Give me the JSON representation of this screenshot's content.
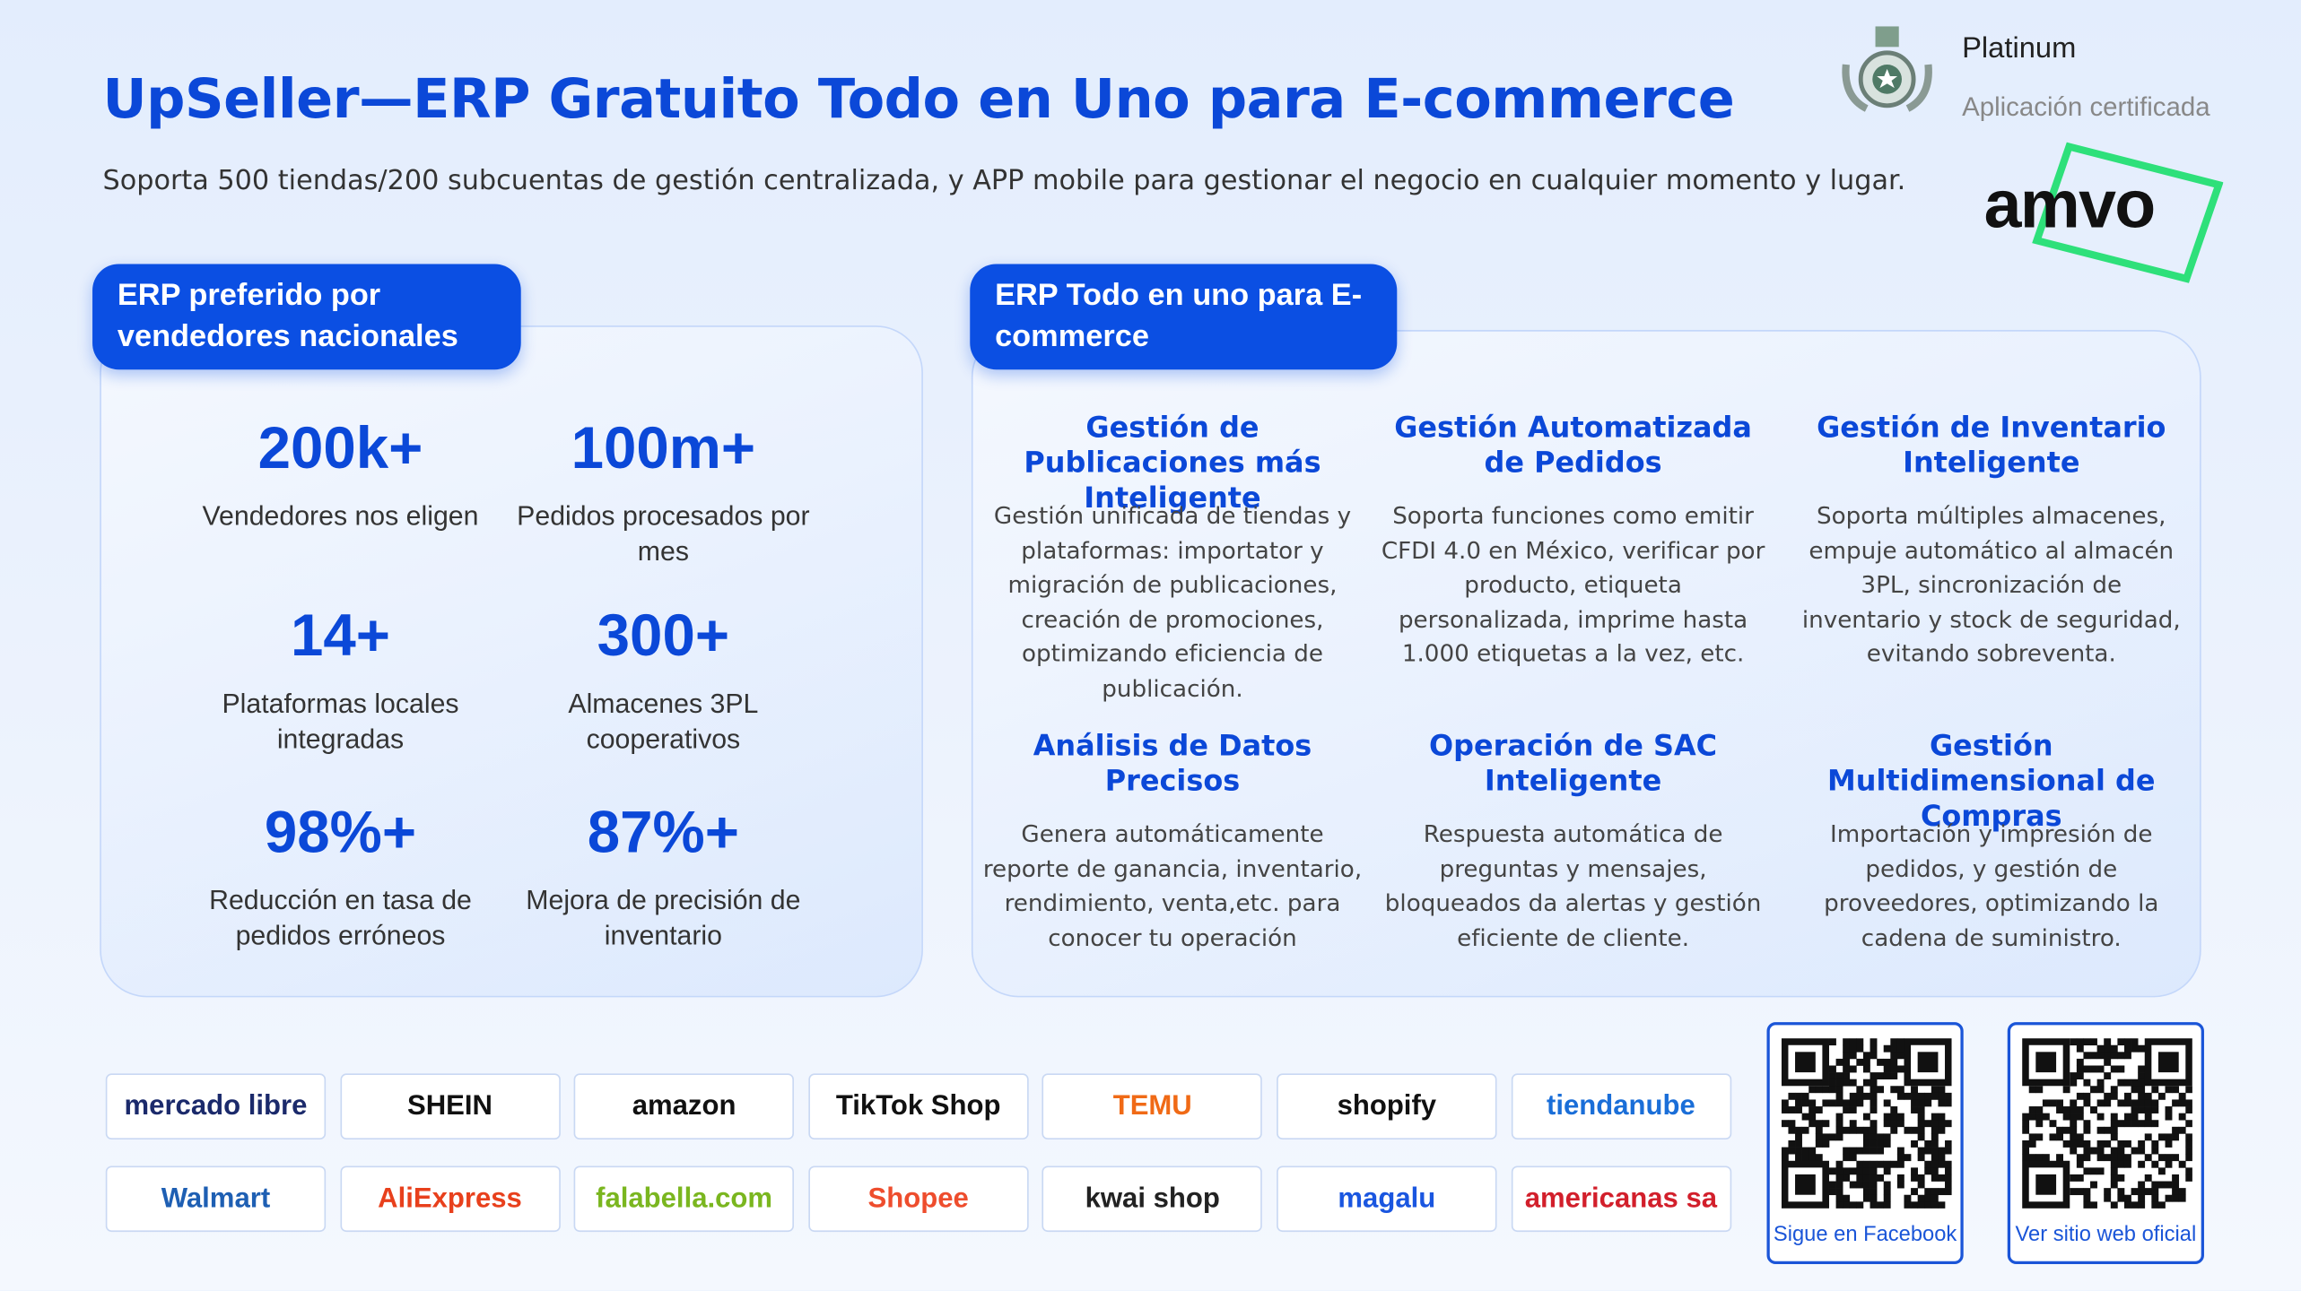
{
  "header": {
    "title": "UpSeller—ERP Gratuito Todo en Uno para E-commerce",
    "subtitle": "Soporta 500 tiendas/200 subcuentas de gestión centralizada, y APP mobile para gestionar el negocio en cualquier momento y lugar."
  },
  "badge": {
    "tier": "Platinum",
    "label": "Aplicación certificada",
    "brand": "amvo"
  },
  "stats": {
    "title": "ERP preferido por vendedores nacionales",
    "items": [
      {
        "value": "200k+",
        "label": "Vendedores nos eligen"
      },
      {
        "value": "100m+",
        "label": "Pedidos procesados por mes"
      },
      {
        "value": "14+",
        "label": "Plataformas locales integradas"
      },
      {
        "value": "300+",
        "label": "Almacenes 3PL cooperativos"
      },
      {
        "value": "98%+",
        "label": "Reducción en tasa de pedidos erróneos"
      },
      {
        "value": "87%+",
        "label": "Mejora de precisión de inventario"
      }
    ]
  },
  "features": {
    "title": "ERP Todo en uno para E-commerce",
    "items": [
      {
        "title": "Gestión de Publicaciones más Inteligente",
        "text": "Gestión unificada de tiendas y plataformas: importator y migración de publicaciones, creación de promociones, optimizando eficiencia de publicación."
      },
      {
        "title": "Gestión Automatizada de Pedidos",
        "text": "Soporta funciones como emitir CFDI 4.0 en México, verificar por producto, etiqueta personalizada, imprime hasta 1.000 etiquetas a la vez, etc."
      },
      {
        "title": "Gestión de Inventario Inteligente",
        "text": "Soporta múltiples almacenes, empuje automático al almacén 3PL, sincronización de inventario y stock de seguridad, evitando sobreventa."
      },
      {
        "title": "Análisis de Datos Precisos",
        "text": "Genera automáticamente reporte de ganancia, inventario, rendimiento, venta,etc. para conocer tu operación"
      },
      {
        "title": "Operación de SAC Inteligente",
        "text": "Respuesta automática de preguntas y mensajes, bloqueados da alertas y gestión eficiente de cliente."
      },
      {
        "title": "Gestión Multidimensional de Compras",
        "text": "Importación y impresión de pedidos, y gestión de proveedores, optimizando la cadena de suministro."
      }
    ]
  },
  "platforms": [
    "mercado libre",
    "SHEIN",
    "amazon",
    "TikTok Shop",
    "TEMU",
    "shopify",
    "tiendanube",
    "Walmart",
    "AliExpress",
    "falabella.com",
    "Shopee",
    "kwai shop",
    "magalu",
    "americanas sa"
  ],
  "qr_codes": [
    {
      "label": "Sigue en Facebook"
    },
    {
      "label": "Ver sitio web oficial"
    }
  ]
}
